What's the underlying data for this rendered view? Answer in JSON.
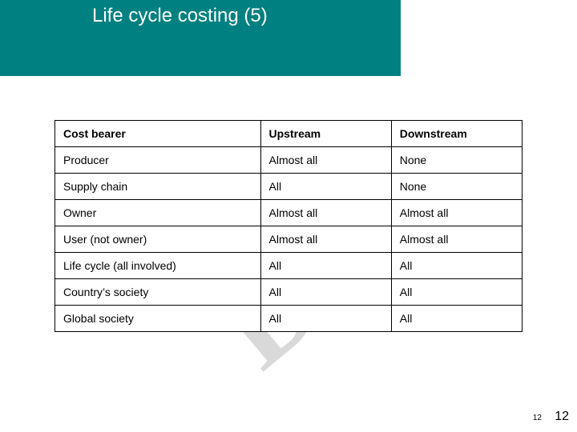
{
  "slide": {
    "title": "Life cycle costing (5)",
    "watermark": "Draft",
    "page_inner": "12",
    "page_outer": "12",
    "header_bg": "#008080"
  },
  "table": {
    "columns": [
      "Cost bearer",
      "Upstream",
      "Downstream"
    ],
    "col_widths_pct": [
      44,
      28,
      28
    ],
    "rows": [
      [
        "Producer",
        "Almost all",
        "None"
      ],
      [
        "Supply chain",
        "All",
        "None"
      ],
      [
        "Owner",
        "Almost all",
        "Almost all"
      ],
      [
        "User (not owner)",
        "Almost all",
        "Almost all"
      ],
      [
        "Life cycle (all involved)",
        "All",
        "All"
      ],
      [
        "Country’s society",
        "All",
        "All"
      ],
      [
        "Global society",
        "All",
        "All"
      ]
    ],
    "border_color": "#000000",
    "header_fontsize": 14,
    "cell_fontsize": 14,
    "background_color": "#ffffff"
  }
}
